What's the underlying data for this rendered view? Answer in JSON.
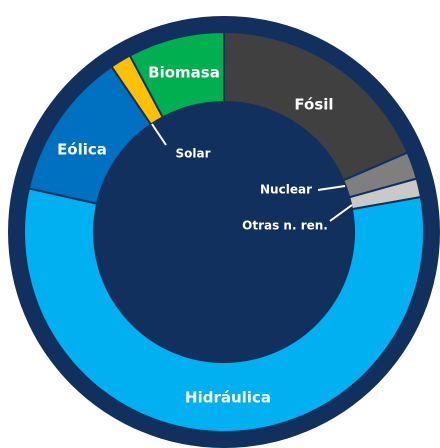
{
  "chart_data": {
    "type": "pie",
    "donut": true,
    "categories": [
      "Fósil",
      "Nuclear",
      "Otras n. ren.",
      "Hidráulica",
      "Eólica",
      "Solar",
      "Biomasa"
    ],
    "values": [
      18.5,
      2.2,
      1.5,
      56.3,
      12,
      1.7,
      7.8
    ],
    "colors": [
      "#404040",
      "#7f7f7f",
      "#c9c9c9",
      "#00b0f0",
      "#0070c0",
      "#ffc000",
      "#00b050"
    ]
  }
}
